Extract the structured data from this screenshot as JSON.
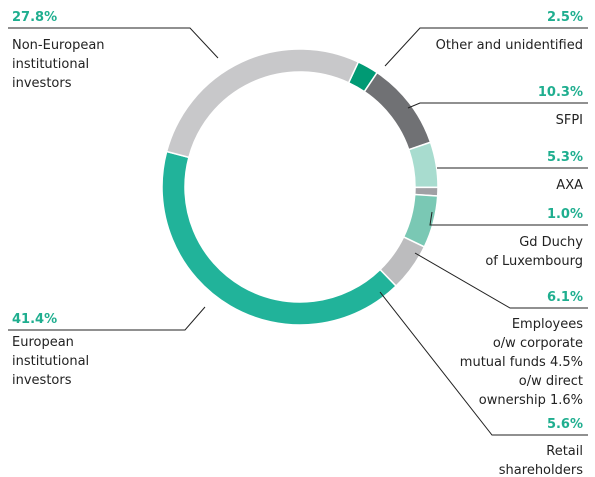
{
  "chart_data": {
    "type": "donut",
    "categories": [
      "Other and unidentified",
      "SFPI",
      "AXA",
      "Gd Duchy\nof Luxembourg",
      "Employees\no/w corporate\nmutual funds 4.5%\no/w direct \nownership 1.6%",
      "Retail\nshareholders",
      "European\ninstitutional\ninvestors",
      "Non-European\ninstitutional\ninvestors"
    ],
    "values": [
      2.5,
      10.3,
      5.3,
      1.0,
      6.1,
      5.6,
      41.4,
      27.8
    ],
    "value_labels": [
      "2.5%",
      "10.3%",
      "5.3%",
      "1.0%",
      "6.1%",
      "5.6%",
      "41.4%",
      "27.8%"
    ],
    "colors": [
      "#009a74",
      "#707174",
      "#a8dccf",
      "#a0a0a4",
      "#7ac8b4",
      "#bcbcbe",
      "#21b39a",
      "#c8c8ca"
    ]
  }
}
